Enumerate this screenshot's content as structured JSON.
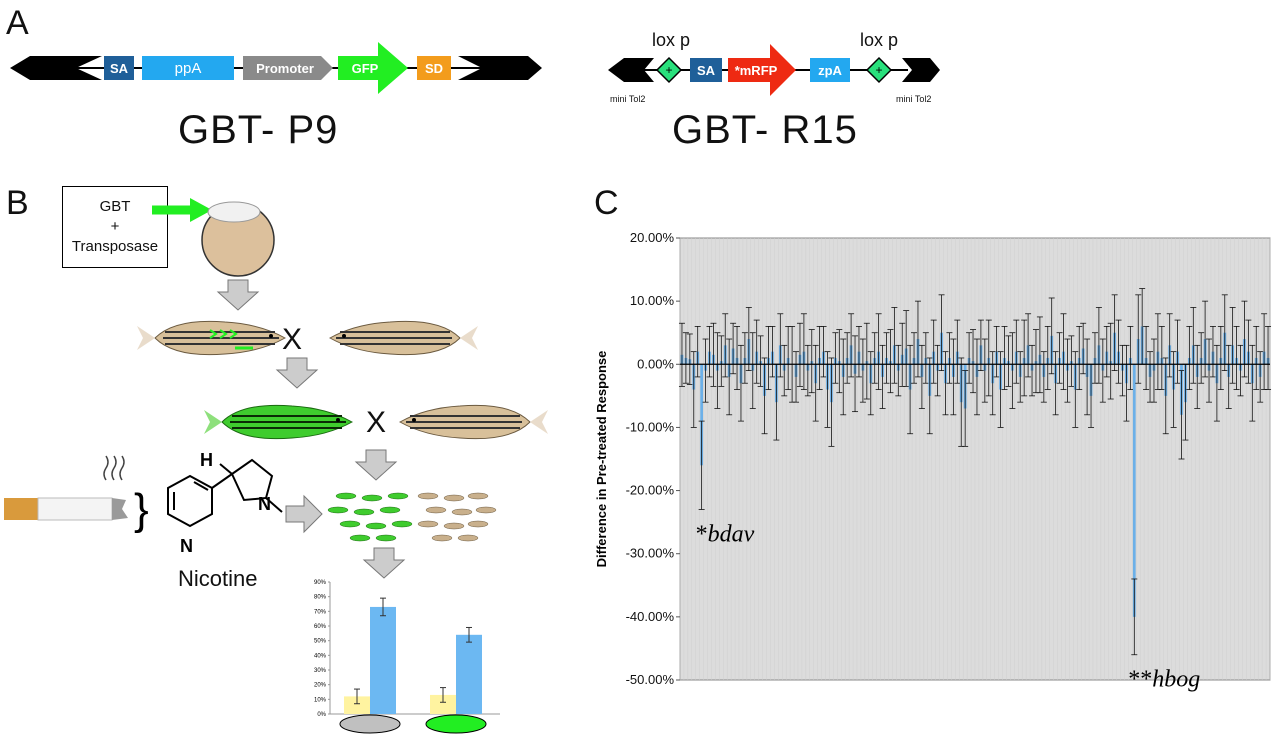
{
  "panels": {
    "a": "A",
    "b": "B",
    "c": "C"
  },
  "gbt_p9": {
    "title": "GBT- P9",
    "elements": {
      "sa": "SA",
      "ppa": "ppA",
      "promoter": "Promoter",
      "gfp": "GFP",
      "sd": "SD"
    },
    "colors": {
      "sa": "#1f5f99",
      "ppa": "#23a8f0",
      "promoter": "#8a8a8a",
      "gfp": "#22ee22",
      "sd": "#f39c1c",
      "arm": "#000000"
    }
  },
  "gbt_r15": {
    "title": "GBT- R15",
    "lox_left": "lox p",
    "lox_right": "lox p",
    "mini_left": "mini Tol2",
    "mini_right": "mini Tol2",
    "elements": {
      "sa": "SA",
      "mrfp": "*mRFP",
      "zpa": "zpA"
    },
    "colors": {
      "sa": "#1f5f99",
      "mrfp": "#ee2a12",
      "zpa": "#23a8f0",
      "lox": "#28e07c"
    }
  },
  "workflow": {
    "injection_box": [
      "GBT",
      "+",
      "Transposase"
    ],
    "cross_symbol": "X",
    "cross_symbol_2": "X",
    "nicotine_label": "Nicotine",
    "molecule_h": "H",
    "molecule_n1": "N",
    "molecule_n2": "N",
    "fish_colors": {
      "wildtype": "#c9b08c",
      "gfp": "#3fcc2e"
    }
  },
  "inset_chart": {
    "y_ticks": [
      "0%",
      "10%",
      "20%",
      "30%",
      "40%",
      "50%",
      "60%",
      "70%",
      "80%",
      "90%"
    ],
    "groups": [
      {
        "indicator": "gray",
        "values": [
          12,
          73
        ]
      },
      {
        "indicator": "green",
        "values": [
          13,
          54
        ]
      }
    ],
    "colors": {
      "baseline": "#fff3a0",
      "response": "#6cb8f2",
      "gray_oval": "#c0c0c0",
      "green_oval": "#22ee22"
    }
  },
  "chart_data": {
    "type": "bar",
    "ylabel": "Difference in Pre-treated Response",
    "ylim": [
      -50,
      20
    ],
    "y_ticks": [
      "20.00%",
      "10.00%",
      "0.00%",
      "-10.00%",
      "-20.00%",
      "-30.00%",
      "-40.00%",
      "-50.00%"
    ],
    "grid": true,
    "background": "#dcdcdc",
    "bar_color": "#6cb0e8",
    "n_bars": 150,
    "values": [
      1.5,
      1.0,
      0.8,
      -4.0,
      2.0,
      -16.0,
      -1.0,
      2.0,
      1.5,
      -1.0,
      0.5,
      3.0,
      -2.0,
      2.5,
      1.0,
      -3.0,
      1.0,
      4.0,
      -1.0,
      2.0,
      0.5,
      -5.0,
      1.0,
      2.0,
      -6.0,
      3.0,
      -1.0,
      1.0,
      0.0,
      -2.0,
      1.5,
      2.0,
      -1.0,
      0.5,
      -3.0,
      1.0,
      2.0,
      -4.0,
      -6.0,
      1.0,
      0.5,
      -2.0,
      1.0,
      3.0,
      -1.5,
      2.0,
      -1.0,
      0.5,
      -3.0,
      1.0,
      2.0,
      -2.0,
      1.0,
      0.5,
      3.0,
      -1.0,
      1.5,
      2.5,
      -4.0,
      1.0,
      4.0,
      -2.0,
      1.0,
      -5.0,
      2.0,
      -1.0,
      5.0,
      -3.0,
      1.0,
      -2.0,
      2.0,
      -6.0,
      -7.0,
      1.0,
      0.5,
      -2.0,
      3.0,
      -1.0,
      1.0,
      -3.0,
      2.0,
      -4.0,
      1.0,
      0.5,
      -1.0,
      2.0,
      -2.0,
      1.0,
      3.0,
      -1.0,
      0.5,
      1.5,
      -2.0,
      1.0,
      4.5,
      -3.0,
      1.0,
      2.0,
      -1.0,
      0.5,
      -4.0,
      1.0,
      2.5,
      -2.0,
      -5.0,
      1.0,
      3.0,
      -1.0,
      2.0,
      0.5,
      5.0,
      2.0,
      -1.0,
      -3.0,
      1.0,
      -40.0,
      4.0,
      6.0,
      1.0,
      -2.0,
      -1.0,
      2.0,
      1.0,
      -5.0,
      3.0,
      -4.0,
      2.0,
      -8.0,
      -6.0,
      1.0,
      3.0,
      -2.0,
      1.0,
      4.0,
      -1.0,
      2.0,
      -3.0,
      1.0,
      5.0,
      -2.0,
      3.0,
      1.0,
      -1.0,
      4.0,
      2.0,
      -3.0,
      1.0,
      -2.0,
      2.0,
      1.0
    ],
    "errors": [
      5,
      4,
      4,
      6,
      4,
      7,
      5,
      4,
      5,
      6,
      4,
      5,
      6,
      4,
      5,
      6,
      4,
      5,
      6,
      5,
      4,
      6,
      5,
      4,
      6,
      5,
      4,
      5,
      6,
      4,
      5,
      6,
      4,
      5,
      6,
      5,
      4,
      6,
      7,
      4,
      5,
      6,
      4,
      5,
      6,
      4,
      5,
      6,
      5,
      4,
      6,
      5,
      4,
      5,
      6,
      4,
      5,
      6,
      7,
      4,
      6,
      5,
      4,
      6,
      5,
      4,
      6,
      5,
      4,
      6,
      5,
      7,
      6,
      4,
      5,
      6,
      4,
      5,
      6,
      5,
      4,
      6,
      5,
      4,
      6,
      5,
      4,
      6,
      5,
      4,
      5,
      6,
      4,
      5,
      6,
      5,
      4,
      6,
      5,
      4,
      6,
      5,
      4,
      6,
      5,
      4,
      6,
      5,
      4,
      6,
      6,
      5,
      4,
      6,
      5,
      6,
      7,
      6,
      5,
      4,
      5,
      6,
      5,
      6,
      5,
      6,
      5,
      7,
      6,
      5,
      6,
      5,
      4,
      6,
      5,
      4,
      6,
      5,
      6,
      5,
      6,
      5,
      4,
      6,
      5,
      6,
      5,
      4,
      6,
      5
    ],
    "annotations": [
      {
        "bar": 5,
        "star": "*",
        "gene": "bdav"
      },
      {
        "bar": 115,
        "star": "**",
        "gene": "hbog"
      }
    ]
  }
}
